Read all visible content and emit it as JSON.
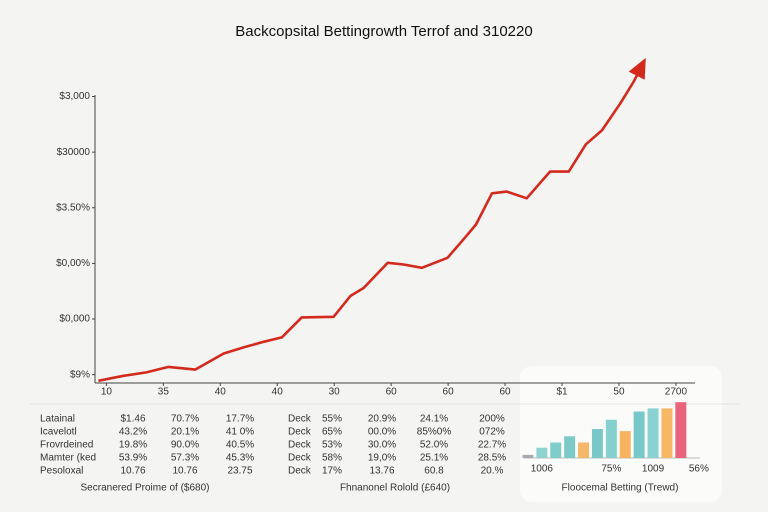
{
  "title": "Backcopsital Bettingrowth Terrof and 310220",
  "chart_data": [
    {
      "type": "line",
      "x": [
        0.86,
        1.3,
        1.7,
        2.09,
        2.56,
        3.06,
        3.41,
        3.76,
        4.08,
        4.43,
        4.99,
        5.29,
        5.52,
        5.94,
        6.22,
        6.54,
        6.99,
        7.31,
        7.49,
        7.77,
        8.03,
        8.38,
        8.79,
        9.12,
        9.42,
        9.7,
        10.02,
        10.26,
        10.44
      ],
      "series": [
        {
          "color": "#d42a1e",
          "values": [
            -0.11,
            -0.02,
            0.04,
            0.14,
            0.09,
            0.38,
            0.49,
            0.59,
            0.67,
            1.03,
            1.04,
            1.42,
            1.56,
            2.01,
            1.98,
            1.92,
            2.1,
            2.48,
            2.7,
            3.26,
            3.29,
            3.17,
            3.65,
            3.65,
            4.14,
            4.39,
            4.87,
            5.27,
            5.63
          ]
        }
      ],
      "xlim": [
        0.8,
        11.3
      ],
      "xticks": [
        {
          "value": 1,
          "label": "10"
        },
        {
          "value": 2,
          "label": "35"
        },
        {
          "value": 3,
          "label": "40"
        },
        {
          "value": 4,
          "label": "40"
        },
        {
          "value": 5,
          "label": "30"
        },
        {
          "value": 6,
          "label": "60"
        },
        {
          "value": 7,
          "label": "60"
        },
        {
          "value": 8,
          "label": "60"
        },
        {
          "value": 9,
          "label": "$1"
        },
        {
          "value": 10,
          "label": "50"
        },
        {
          "value": 11,
          "label": "2700"
        }
      ],
      "ylim": [
        -0.15,
        5.8
      ],
      "yticks": [
        {
          "value": 0,
          "label": "$9%"
        },
        {
          "value": 1,
          "label": "$0,000"
        },
        {
          "value": 2,
          "label": "$0,00%"
        },
        {
          "value": 3,
          "label": "$3.50%"
        },
        {
          "value": 4,
          "label": "$30000"
        },
        {
          "value": 5,
          "label": "$3,000"
        }
      ]
    },
    {
      "type": "bar",
      "title": "Floocemal Betting (Trewd)",
      "categories": [
        null,
        "1006",
        null,
        null,
        null,
        null,
        "75%",
        null,
        null,
        "1009",
        null,
        "56%"
      ],
      "values": [
        3,
        10,
        15,
        21,
        15,
        28,
        37,
        26,
        45,
        48,
        48,
        54
      ],
      "colors": [
        "#a9a9b5",
        "#8fd3d0",
        "#7fcdcb",
        "#7ccac8",
        "#f5b86a",
        "#79c7c6",
        "#83d0cf",
        "#f5b35f",
        "#77c8c8",
        "#8ad1d2",
        "#f7b765",
        "#e8647a"
      ],
      "ylim": [
        0,
        60
      ]
    }
  ],
  "tables": [
    {
      "caption": "Secranered Proime of ($680)",
      "rows": [
        [
          "Latainal",
          "$1.46",
          "70.7%",
          "17.7%"
        ],
        [
          "Icavelotl",
          "43.2%",
          "20.1%",
          "41 0%"
        ],
        [
          "Frovrdeined",
          "19.8%",
          "90.0%",
          "40.5%"
        ],
        [
          "Mamter (ked",
          "53.9%",
          "57.3%",
          "45.3%"
        ],
        [
          "Pesoloxal",
          "10.76",
          "10.76",
          "23.75"
        ]
      ]
    },
    {
      "caption": "Fhnanonel Rolold (£640)",
      "rows": [
        [
          "Deck",
          "55%",
          "20.9%",
          "24.1%",
          "200%"
        ],
        [
          "Deck",
          "65%",
          "00.0%",
          "85%0%",
          "072%"
        ],
        [
          "Deck",
          "53%",
          "30.0%",
          "52.0%",
          "22.7%"
        ],
        [
          "Deck",
          "58%",
          "19,0%",
          "25.1%",
          "28.5%"
        ],
        [
          "Deck",
          "17%",
          "13.76",
          "60.8",
          "20.%"
        ]
      ]
    }
  ]
}
